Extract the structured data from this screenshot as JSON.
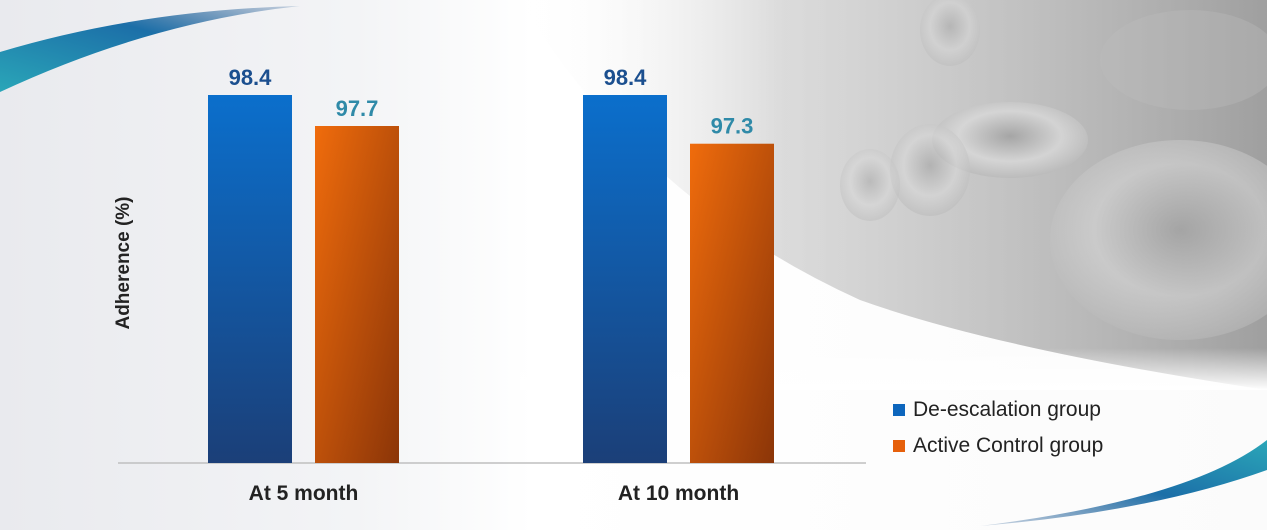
{
  "chart_data": {
    "type": "bar",
    "categories": [
      "At 5 month",
      "At 10 month"
    ],
    "series": [
      {
        "name": "De-escalation group",
        "values": [
          98.4,
          98.4
        ],
        "color": "#0d66bd",
        "label_color": "#1b4f8f"
      },
      {
        "name": "Active Control group",
        "values": [
          97.7,
          97.3
        ],
        "color": "#e6600b",
        "label_color": "#2f8aa8"
      }
    ],
    "title": "",
    "xlabel": "",
    "ylabel": "Adherence (%)",
    "legend_position": "bottom-right",
    "grid": false
  }
}
